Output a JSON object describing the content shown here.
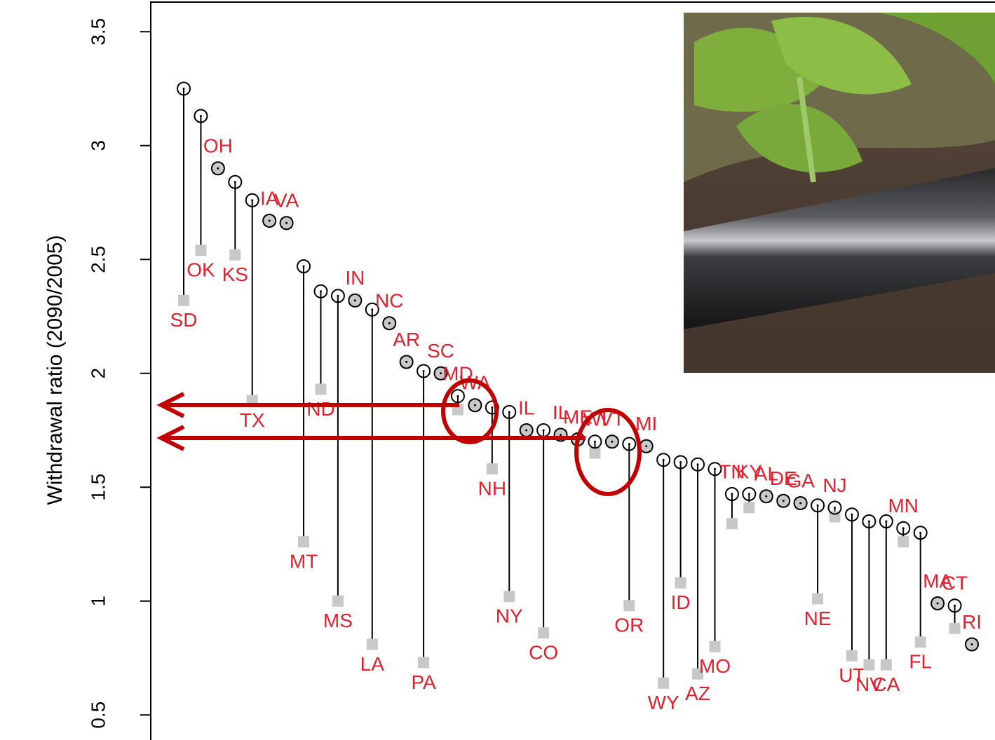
{
  "chart_data": {
    "type": "dot",
    "y_label": "Withdrawal ratio (2090/2005)",
    "categories": [
      "SD",
      "OK",
      "OH",
      "KS",
      "TX",
      "IA",
      "VA",
      "MT",
      "ND",
      "MS",
      "IN",
      "LA",
      "NC",
      "AR",
      "PA",
      "SC",
      "MD",
      "WA",
      "NH",
      "NY",
      "IL",
      "CO",
      "IL",
      "ME",
      "WI",
      "VT",
      "OR",
      "MI",
      "WY",
      "ID",
      "AZ",
      "MO",
      "TN",
      "KY",
      "AL",
      "DE",
      "GA",
      "NE",
      "NJ",
      "UT",
      "NV",
      "CA",
      "MN",
      "FL",
      "MA",
      "CT",
      "RI"
    ],
    "label_color": "#e3202b",
    "series": [
      {
        "color": "#000000",
        "values": [
          3.25,
          3.13,
          2.9,
          2.84,
          2.76,
          2.67,
          2.66,
          2.47,
          2.36,
          2.34,
          2.32,
          2.28,
          2.22,
          2.05,
          2.01,
          2.0,
          1.9,
          1.86,
          1.85,
          1.83,
          1.75,
          1.75,
          1.73,
          1.71,
          1.7,
          1.7,
          1.69,
          1.68,
          1.62,
          1.61,
          1.6,
          1.58,
          1.47,
          1.47,
          1.46,
          1.44,
          1.43,
          1.42,
          1.41,
          1.38,
          1.35,
          1.35,
          1.32,
          1.3,
          0.99,
          0.98,
          0.81
        ]
      },
      {
        "color": "#c8c8c8",
        "values": [
          2.32,
          2.54,
          2.9,
          2.52,
          1.88,
          2.67,
          2.66,
          1.26,
          1.93,
          1.0,
          2.32,
          0.81,
          2.22,
          2.05,
          0.73,
          2.0,
          1.84,
          1.86,
          1.58,
          1.02,
          1.75,
          0.86,
          1.73,
          1.71,
          1.65,
          1.7,
          0.98,
          1.68,
          0.64,
          1.08,
          0.68,
          0.8,
          1.34,
          1.41,
          1.46,
          1.44,
          1.43,
          1.01,
          1.37,
          0.76,
          0.72,
          0.72,
          1.26,
          0.82,
          0.99,
          0.88,
          0.81
        ]
      }
    ],
    "ylim": [
      0.39,
      3.63
    ],
    "yticks": [
      0.5,
      1.0,
      1.5,
      2.0,
      2.5,
      3.0,
      3.5
    ]
  }
}
